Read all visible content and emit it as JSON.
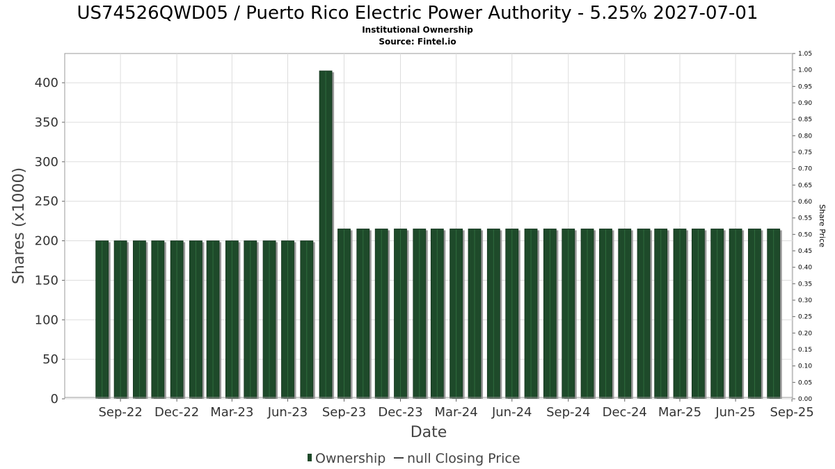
{
  "chart_data": {
    "type": "bar",
    "title": "US74526QWD05 / Puerto Rico Electric Power Authority - 5.25% 2027-07-01",
    "subtitle_lines": [
      "Institutional Ownership",
      "Source: Fintel.io"
    ],
    "xlabel": "Date",
    "ylabel": "Shares (x1000)",
    "ylabel_right": "Share Price",
    "x_tick_labels": [
      "Sep-22",
      "Dec-22",
      "Mar-23",
      "Jun-23",
      "Sep-23",
      "Dec-23",
      "Mar-24",
      "Jun-24",
      "Sep-24",
      "Dec-24",
      "Mar-25",
      "Jun-25",
      "Sep-25"
    ],
    "x_start": "2022-07-01",
    "x_end": "2025-10-01",
    "ylim": [
      0,
      437
    ],
    "y_ticks": [
      0,
      50,
      100,
      150,
      200,
      250,
      300,
      350,
      400
    ],
    "ylim_right": [
      0,
      1.05
    ],
    "y_ticks_right": [
      "0.00",
      "0.05",
      "0.10",
      "0.15",
      "0.20",
      "0.25",
      "0.30",
      "0.35",
      "0.40",
      "0.45",
      "0.50",
      "0.55",
      "0.60",
      "0.65",
      "0.70",
      "0.75",
      "0.80",
      "0.85",
      "0.90",
      "0.95",
      "1.00",
      "1.05"
    ],
    "grid": true,
    "legend_position": "bottom",
    "series": [
      {
        "name": "Ownership",
        "color": "#1e4a2a",
        "x": [
          "2022-08-31",
          "2022-09-30",
          "2022-10-31",
          "2022-11-30",
          "2022-12-31",
          "2023-01-31",
          "2023-02-28",
          "2023-03-31",
          "2023-04-30",
          "2023-05-31",
          "2023-06-30",
          "2023-07-31",
          "2023-08-31",
          "2023-09-30",
          "2023-10-31",
          "2023-11-30",
          "2023-12-31",
          "2024-01-31",
          "2024-02-29",
          "2024-03-31",
          "2024-04-30",
          "2024-05-31",
          "2024-06-30",
          "2024-07-31",
          "2024-08-31",
          "2024-09-30",
          "2024-10-31",
          "2024-11-30",
          "2024-12-31",
          "2025-01-31",
          "2025-02-28",
          "2025-03-31",
          "2025-04-30",
          "2025-05-31",
          "2025-06-30",
          "2025-07-31",
          "2025-08-31"
        ],
        "values": [
          200,
          200,
          200,
          200,
          200,
          200,
          200,
          200,
          200,
          200,
          200,
          200,
          415,
          215,
          215,
          215,
          215,
          215,
          215,
          215,
          215,
          215,
          215,
          215,
          215,
          215,
          215,
          215,
          215,
          215,
          215,
          215,
          215,
          215,
          215,
          215,
          215
        ]
      }
    ],
    "legend": [
      {
        "label": "Ownership",
        "kind": "bar",
        "color": "#1e4a2a"
      },
      {
        "label": "null Closing Price",
        "kind": "line",
        "color": "#444444"
      }
    ]
  }
}
